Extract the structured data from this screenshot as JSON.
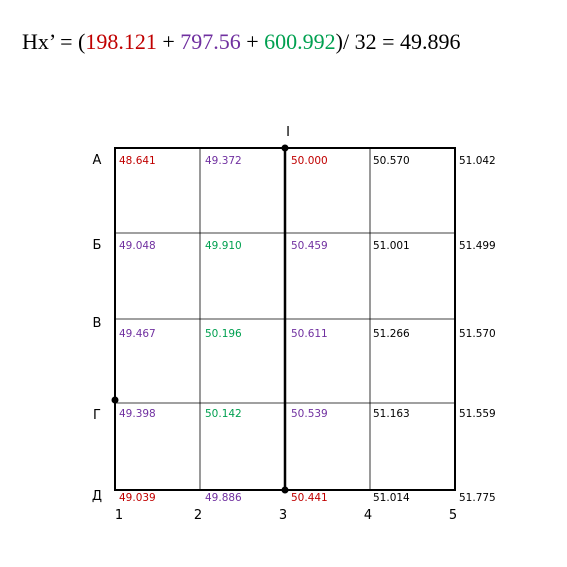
{
  "formula": {
    "parts": [
      {
        "text": "Hx’ = (",
        "color": "#000000"
      },
      {
        "text": "198.121",
        "color": "#c00000"
      },
      {
        "text": " + ",
        "color": "#000000"
      },
      {
        "text": "797.56",
        "color": "#7030a0"
      },
      {
        "text": " + ",
        "color": "#000000"
      },
      {
        "text": "600.992",
        "color": "#00a050"
      },
      {
        "text": ")/ 32 = 49.896",
        "color": "#000000"
      }
    ]
  },
  "grid": {
    "line_label": "I",
    "columns": [
      "1",
      "2",
      "3",
      "4",
      "5"
    ],
    "rows": [
      {
        "label": "А",
        "cells": [
          {
            "text": "48.641",
            "color": "#c00000"
          },
          {
            "text": "49.372",
            "color": "#7030a0"
          },
          {
            "text": "50.000",
            "color": "#c00000"
          },
          {
            "text": "50.570",
            "color": "#000000"
          },
          {
            "text": "51.042",
            "color": "#000000"
          }
        ]
      },
      {
        "label": "Б",
        "cells": [
          {
            "text": "49.048",
            "color": "#7030a0"
          },
          {
            "text": "49.910",
            "color": "#00a050"
          },
          {
            "text": "50.459",
            "color": "#7030a0"
          },
          {
            "text": "51.001",
            "color": "#000000"
          },
          {
            "text": "51.499",
            "color": "#000000"
          }
        ]
      },
      {
        "label": "В",
        "cells": [
          {
            "text": "49.467",
            "color": "#7030a0"
          },
          {
            "text": "50.196",
            "color": "#00a050"
          },
          {
            "text": "50.611",
            "color": "#7030a0"
          },
          {
            "text": "51.266",
            "color": "#000000"
          },
          {
            "text": "51.570",
            "color": "#000000"
          }
        ]
      },
      {
        "label": "Г",
        "cells": [
          {
            "text": "49.398",
            "color": "#7030a0"
          },
          {
            "text": "50.142",
            "color": "#00a050"
          },
          {
            "text": "50.539",
            "color": "#7030a0"
          },
          {
            "text": "51.163",
            "color": "#000000"
          },
          {
            "text": "51.559",
            "color": "#000000"
          }
        ]
      },
      {
        "label": "Д",
        "cells": [
          {
            "text": "49.039",
            "color": "#c00000"
          },
          {
            "text": "49.886",
            "color": "#7030a0"
          },
          {
            "text": "50.441",
            "color": "#c00000"
          },
          {
            "text": "51.014",
            "color": "#000000"
          },
          {
            "text": "51.775",
            "color": "#000000"
          }
        ]
      }
    ]
  }
}
